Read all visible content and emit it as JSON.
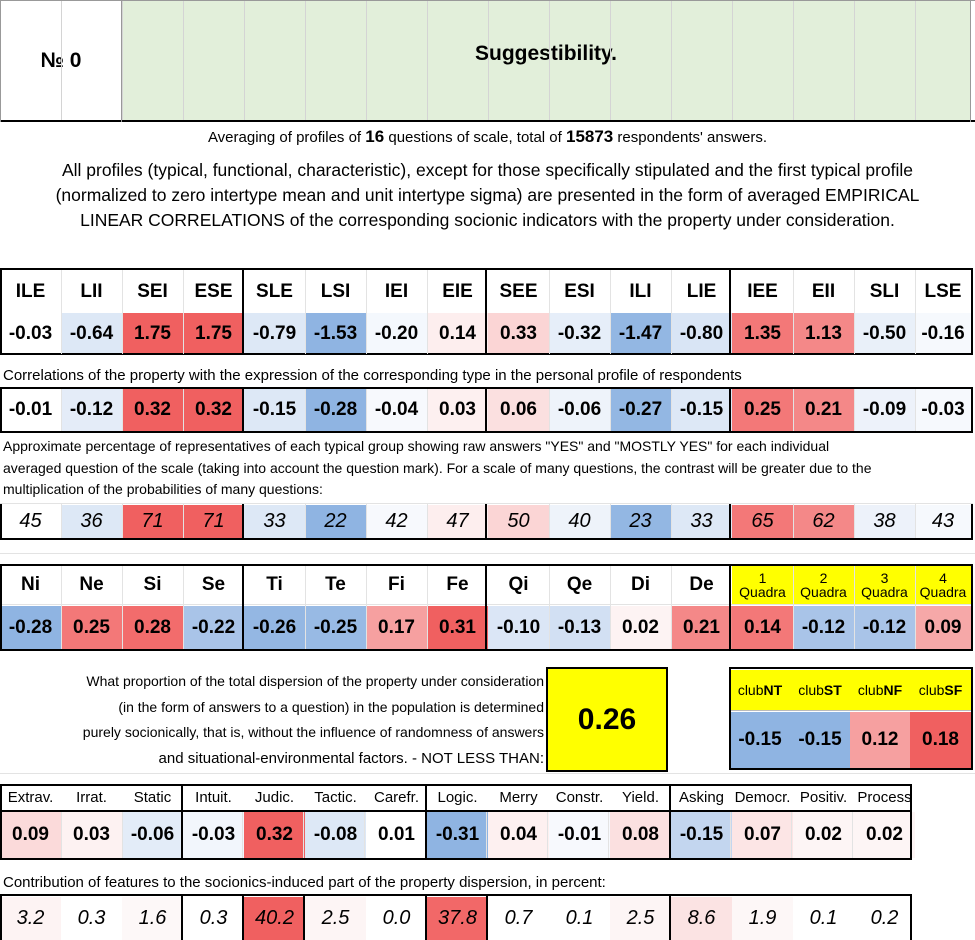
{
  "header": {
    "number_label": "№ 0",
    "title": "Suggestibility.",
    "averaging": {
      "prefix": "Averaging of profiles of ",
      "questions": "16",
      "middle": " questions of scale, total of ",
      "respondents": "15873",
      "suffix": " respondents' answers."
    },
    "description_lines": [
      "All profiles (typical, functional, characteristic), except for those specifically stipulated and the first typical profile",
      "(normalized to zero intertype mean and unit intertype sigma) are presented in the form of averaged EMPIRICAL",
      "LINEAR CORRELATIONS of the corresponding socionic indicators with the property under consideration."
    ]
  },
  "types": {
    "labels": [
      "ILE",
      "LII",
      "SEI",
      "ESE",
      "SLE",
      "LSI",
      "IEI",
      "EIE",
      "SEE",
      "ESI",
      "ILI",
      "LIE",
      "IEE",
      "EII",
      "SLI",
      "LSE"
    ],
    "profile": [
      "-0.03",
      "-0.64",
      "1.75",
      "1.75",
      "-0.79",
      "-1.53",
      "-0.20",
      "0.14",
      "0.33",
      "-0.32",
      "-1.47",
      "-0.80",
      "1.35",
      "1.13",
      "-0.50",
      "-0.16"
    ],
    "profile_colors": [
      "#ffffff",
      "#dde8f6",
      "#f06060",
      "#f06060",
      "#dde8f6",
      "#8fb4e2",
      "#f4f8fd",
      "#fdeeee",
      "#fbd5d5",
      "#e6eef9",
      "#93b7e3",
      "#d9e5f5",
      "#f37878",
      "#f48888",
      "#e9f0f9",
      "#f6f9fd"
    ],
    "correlation_note": "Correlations of the property with the expression of the corresponding type in the personal profile of respondents",
    "correlations": [
      "-0.01",
      "-0.12",
      "0.32",
      "0.32",
      "-0.15",
      "-0.28",
      "-0.04",
      "0.03",
      "0.06",
      "-0.06",
      "-0.27",
      "-0.15",
      "0.25",
      "0.21",
      "-0.09",
      "-0.03"
    ],
    "correlation_colors": [
      "#ffffff",
      "#e4ecf8",
      "#f06060",
      "#f06060",
      "#dde8f6",
      "#8fb4e2",
      "#f7f9fd",
      "#fdf0f0",
      "#fbe0e0",
      "#eef3fa",
      "#93b7e3",
      "#dde8f6",
      "#f37878",
      "#f48888",
      "#edf2fa",
      "#f6f9fd"
    ],
    "percentage_note_lines": [
      "Approximate percentage of representatives of each typical group showing raw answers \"YES\" and \"MOSTLY YES\" for each individual",
      "averaged question of the scale (taking into account the question mark). For a scale of many questions, the contrast will be greater due to the",
      "multiplication of the probabilities of many questions:"
    ],
    "percentages": [
      "45",
      "36",
      "71",
      "71",
      "33",
      "22",
      "42",
      "47",
      "50",
      "40",
      "23",
      "33",
      "65",
      "62",
      "38",
      "43"
    ],
    "percentage_colors": [
      "#ffffff",
      "#dde8f6",
      "#f06060",
      "#f06060",
      "#dde8f6",
      "#8fb4e2",
      "#f7f9fd",
      "#fdeeee",
      "#fbd5d5",
      "#eef3fa",
      "#93b7e3",
      "#dde8f6",
      "#f37878",
      "#f48888",
      "#edf2fa",
      "#f6f9fd"
    ]
  },
  "functions": {
    "labels": [
      "Ni",
      "Ne",
      "Si",
      "Se",
      "Ti",
      "Te",
      "Fi",
      "Fe",
      "Qi",
      "Qe",
      "Di",
      "De"
    ],
    "values": [
      "-0.28",
      "0.25",
      "0.28",
      "-0.22",
      "-0.26",
      "-0.25",
      "0.17",
      "0.31",
      "-0.10",
      "-0.13",
      "0.02",
      "0.21"
    ],
    "colors": [
      "#8fb4e2",
      "#f37878",
      "#f26c6c",
      "#a9c4e8",
      "#94b7e3",
      "#98bae4",
      "#f6a0a0",
      "#f06060",
      "#dbe6f6",
      "#d2e0f3",
      "#fdf3f3",
      "#f48888"
    ]
  },
  "quadras": {
    "labels": [
      [
        "1",
        "Quadra"
      ],
      [
        "2",
        "Quadra"
      ],
      [
        "3",
        "Quadra"
      ],
      [
        "4",
        "Quadra"
      ]
    ],
    "values": [
      "0.14",
      "-0.12",
      "-0.12",
      "0.09"
    ],
    "colors": [
      "#f37878",
      "#a9c4e8",
      "#a9c4e8",
      "#f6a8a8"
    ],
    "header_color": "#ffff00"
  },
  "dispersion": {
    "lines": [
      "What proportion of the total dispersion of the property under consideration",
      "(in the form of answers to a question) in the population is determined",
      "purely socionically, that is, without the influence of randomness of answers",
      "and situational-environmental factors. - NOT LESS THAN:"
    ],
    "value": "0.26"
  },
  "clubs": {
    "labels": [
      [
        "club",
        "NT"
      ],
      [
        "club",
        "ST"
      ],
      [
        "club",
        "NF"
      ],
      [
        "club",
        "SF"
      ]
    ],
    "values": [
      "-0.15",
      "-0.15",
      "0.12",
      "0.18"
    ],
    "colors": [
      "#8fb4e2",
      "#8fb4e2",
      "#f6a0a0",
      "#f06060"
    ]
  },
  "features": {
    "labels": [
      "Extrav.",
      "Irrat.",
      "Static",
      "Intuit.",
      "Judic.",
      "Tactic.",
      "Carefr.",
      "Logic.",
      "Merry",
      "Constr.",
      "Yield.",
      "Asking",
      "Democr.",
      "Positiv.",
      "Process"
    ],
    "values": [
      "0.09",
      "0.03",
      "-0.06",
      "-0.03",
      "0.32",
      "-0.08",
      "0.01",
      "-0.31",
      "0.04",
      "-0.01",
      "0.08",
      "-0.15",
      "0.07",
      "0.02",
      "0.02"
    ],
    "colors": [
      "#fbdada",
      "#fdf2f2",
      "#e3ecf8",
      "#f2f6fc",
      "#f06060",
      "#dde8f6",
      "#ffffff",
      "#8fb4e2",
      "#fdf0f0",
      "#f7f9fd",
      "#fbe0e0",
      "#c3d6ef",
      "#fce5e5",
      "#fdf5f5",
      "#fdf5f5"
    ],
    "contribution_note": "Contribution of features to the socionics-induced part of the property dispersion, in percent:",
    "contributions": [
      "3.2",
      "0.3",
      "1.6",
      "0.3",
      "40.2",
      "2.5",
      "0.0",
      "37.8",
      "0.7",
      "0.1",
      "2.5",
      "8.6",
      "1.9",
      "0.1",
      "0.2"
    ],
    "contribution_colors": [
      "#fdf3f3",
      "#ffffff",
      "#fdf8f8",
      "#ffffff",
      "#f06060",
      "#fdf5f5",
      "#ffffff",
      "#f26868",
      "#ffffff",
      "#ffffff",
      "#fdf5f5",
      "#fbe3e3",
      "#fdf7f7",
      "#ffffff",
      "#ffffff"
    ]
  }
}
